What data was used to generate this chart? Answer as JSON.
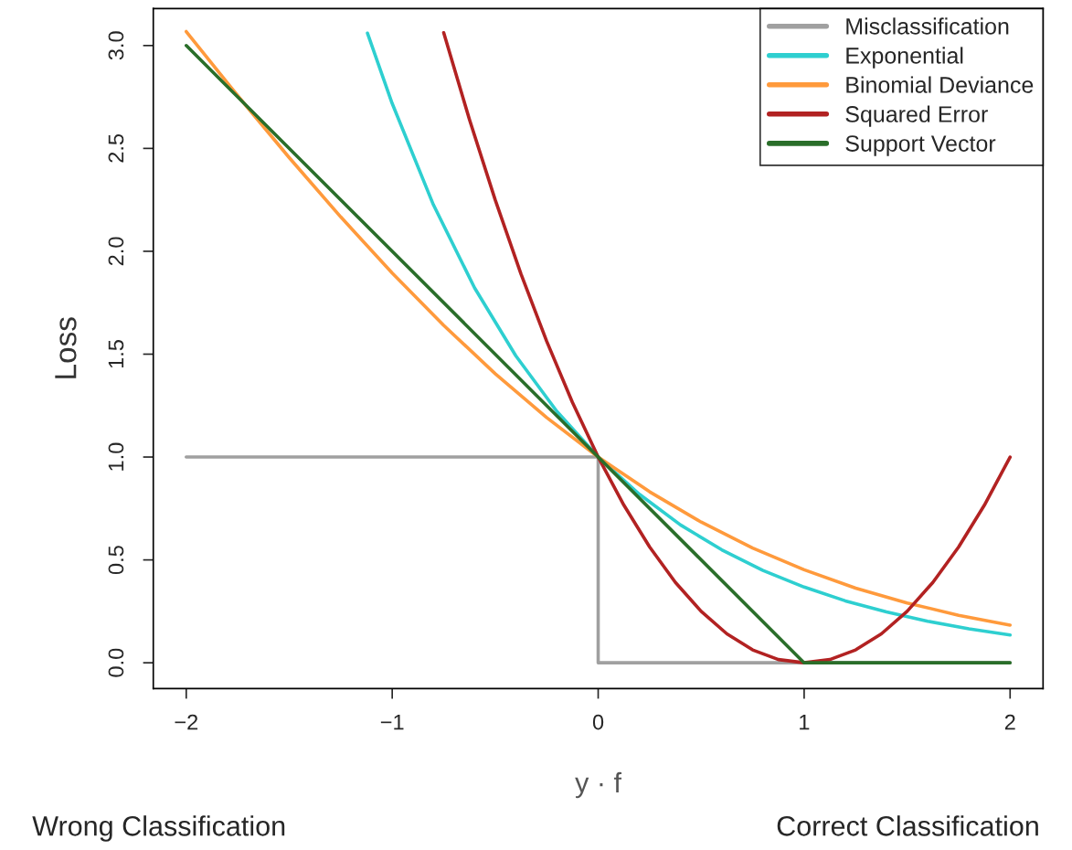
{
  "chart_data": {
    "type": "line",
    "xlabel": "y · f",
    "ylabel": "Loss",
    "annotations": [
      "Wrong Classification",
      "Correct Classification"
    ],
    "xlim": [
      -2.16,
      2.16
    ],
    "ylim": [
      -0.125,
      3.18
    ],
    "xticks": [
      {
        "value": -2,
        "label": "−2"
      },
      {
        "value": -1,
        "label": "−1"
      },
      0,
      1,
      2
    ],
    "yticks": [
      {
        "value": 0,
        "label": "0.0"
      },
      {
        "value": 0.5,
        "label": "0.5"
      },
      {
        "value": 1,
        "label": "1.0"
      },
      {
        "value": 1.5,
        "label": "1.5"
      },
      {
        "value": 2,
        "label": "2.0"
      },
      {
        "value": 2.5,
        "label": "2.5"
      },
      {
        "value": 3,
        "label": "3.0"
      }
    ],
    "grid": false,
    "legend": "top right",
    "marker": "none",
    "line_style": "solid",
    "series": [
      {
        "name": "Misclassification",
        "color": "#a0a0a0",
        "x": [
          -2,
          0,
          0,
          2
        ],
        "values": [
          1,
          1,
          0,
          0
        ]
      },
      {
        "name": "Exponential",
        "color": "#2ecfd0",
        "x": [
          -1.12,
          -1.0,
          -0.8,
          -0.6,
          -0.4,
          -0.2,
          0,
          0.2,
          0.4,
          0.6,
          0.8,
          1.0,
          1.2,
          1.4,
          1.6,
          1.8,
          2.0
        ],
        "values": [
          3.06,
          2.718,
          2.226,
          1.822,
          1.492,
          1.221,
          1,
          0.819,
          0.67,
          0.549,
          0.449,
          0.368,
          0.301,
          0.247,
          0.202,
          0.165,
          0.135
        ]
      },
      {
        "name": "Binomial Deviance",
        "color": "#ff9a3c",
        "x": [
          -2,
          -1.75,
          -1.5,
          -1.25,
          -1,
          -0.75,
          -0.5,
          -0.25,
          0,
          0.25,
          0.5,
          0.75,
          1,
          1.25,
          1.5,
          1.75,
          2
        ],
        "values": [
          3.068,
          2.756,
          2.455,
          2.167,
          1.894,
          1.64,
          1.405,
          1.192,
          1,
          0.831,
          0.684,
          0.558,
          0.452,
          0.363,
          0.291,
          0.231,
          0.183
        ]
      },
      {
        "name": "Squared Error",
        "color": "#b22222",
        "x": [
          -0.75,
          -0.625,
          -0.5,
          -0.375,
          -0.25,
          -0.125,
          0,
          0.125,
          0.25,
          0.375,
          0.5,
          0.625,
          0.75,
          0.875,
          1,
          1.125,
          1.25,
          1.375,
          1.5,
          1.625,
          1.75,
          1.875,
          2
        ],
        "values": [
          3.0625,
          2.6406,
          2.25,
          1.8906,
          1.5625,
          1.2656,
          1,
          0.7656,
          0.5625,
          0.3906,
          0.25,
          0.1406,
          0.0625,
          0.0156,
          0,
          0.0156,
          0.0625,
          0.1406,
          0.25,
          0.3906,
          0.5625,
          0.7656,
          1
        ]
      },
      {
        "name": "Support Vector",
        "color": "#2a6e2a",
        "x": [
          -2,
          1,
          2
        ],
        "values": [
          3,
          0,
          0
        ]
      }
    ]
  }
}
